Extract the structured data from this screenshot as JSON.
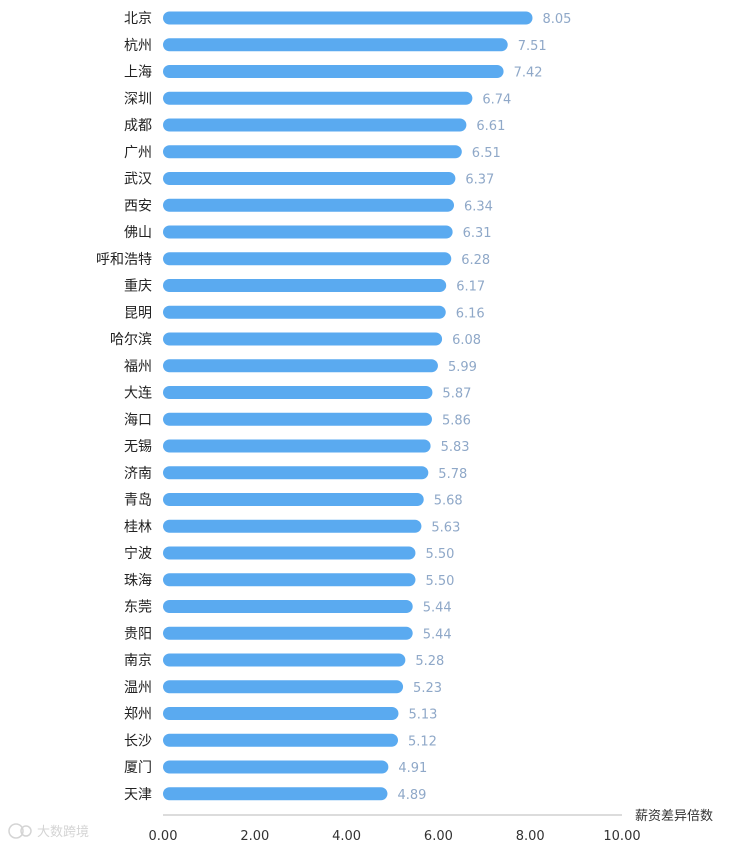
{
  "chart_data": {
    "type": "bar",
    "orientation": "horizontal",
    "categories": [
      "北京",
      "杭州",
      "上海",
      "深圳",
      "成都",
      "广州",
      "武汉",
      "西安",
      "佛山",
      "呼和浩特",
      "重庆",
      "昆明",
      "哈尔滨",
      "福州",
      "大连",
      "海口",
      "无锡",
      "济南",
      "青岛",
      "桂林",
      "宁波",
      "珠海",
      "东莞",
      "贵阳",
      "南京",
      "温州",
      "郑州",
      "长沙",
      "厦门",
      "天津"
    ],
    "values": [
      8.05,
      7.51,
      7.42,
      6.74,
      6.61,
      6.51,
      6.37,
      6.34,
      6.31,
      6.28,
      6.17,
      6.16,
      6.08,
      5.99,
      5.87,
      5.86,
      5.83,
      5.78,
      5.68,
      5.63,
      5.5,
      5.5,
      5.44,
      5.44,
      5.28,
      5.23,
      5.13,
      5.12,
      4.91,
      4.89
    ],
    "value_labels": [
      "8.05",
      "7.51",
      "7.42",
      "6.74",
      "6.61",
      "6.51",
      "6.37",
      "6.34",
      "6.31",
      "6.28",
      "6.17",
      "6.16",
      "6.08",
      "5.99",
      "5.87",
      "5.86",
      "5.83",
      "5.78",
      "5.68",
      "5.63",
      "5.50",
      "5.50",
      "5.44",
      "5.44",
      "5.28",
      "5.23",
      "5.13",
      "5.12",
      "4.91",
      "4.89"
    ],
    "xlabel": "薪资差异倍数",
    "xlim": [
      0,
      10
    ],
    "xticks": [
      "0.00",
      "2.00",
      "4.00",
      "6.00",
      "8.00",
      "10.00"
    ],
    "grid": false,
    "bar_color": "#5aaaf0",
    "value_label_color": "#8fa8c8"
  },
  "watermark": {
    "text": "大数跨境",
    "icon": "watermark-logo-icon"
  }
}
